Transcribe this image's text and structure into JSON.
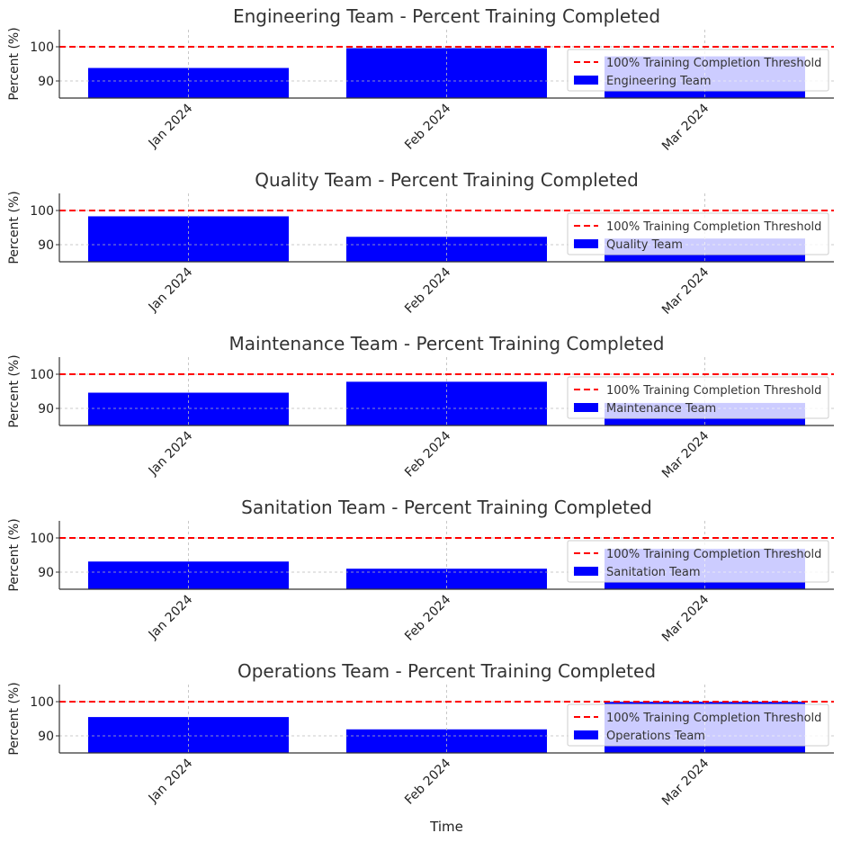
{
  "chart_data": [
    {
      "type": "bar",
      "title": "Engineering Team - Percent Training Completed",
      "ylabel": "Percent (%)",
      "xlabel": "",
      "categories": [
        "Jan 2024",
        "Feb 2024",
        "Mar 2024"
      ],
      "series": [
        {
          "name": "Engineering Team",
          "values": [
            93.8,
            99.6,
            97.2
          ]
        }
      ],
      "threshold": {
        "name": "100% Training Completion Threshold",
        "value": 100
      },
      "ylim": [
        85,
        105
      ],
      "yticks": [
        90,
        100
      ]
    },
    {
      "type": "bar",
      "title": "Quality Team - Percent Training Completed",
      "ylabel": "Percent (%)",
      "xlabel": "",
      "categories": [
        "Jan 2024",
        "Feb 2024",
        "Mar 2024"
      ],
      "series": [
        {
          "name": "Quality Team",
          "values": [
            98.3,
            92.3,
            91.8
          ]
        }
      ],
      "threshold": {
        "name": "100% Training Completion Threshold",
        "value": 100
      },
      "ylim": [
        85,
        105
      ],
      "yticks": [
        90,
        100
      ]
    },
    {
      "type": "bar",
      "title": "Maintenance Team - Percent Training Completed",
      "ylabel": "Percent (%)",
      "xlabel": "",
      "categories": [
        "Jan 2024",
        "Feb 2024",
        "Mar 2024"
      ],
      "series": [
        {
          "name": "Maintenance Team",
          "values": [
            94.6,
            97.8,
            91.6
          ]
        }
      ],
      "threshold": {
        "name": "100% Training Completion Threshold",
        "value": 100
      },
      "ylim": [
        85,
        105
      ],
      "yticks": [
        90,
        100
      ]
    },
    {
      "type": "bar",
      "title": "Sanitation Team - Percent Training Completed",
      "ylabel": "Percent (%)",
      "xlabel": "",
      "categories": [
        "Jan 2024",
        "Feb 2024",
        "Mar 2024"
      ],
      "series": [
        {
          "name": "Sanitation Team",
          "values": [
            93.1,
            91.0,
            96.8
          ]
        }
      ],
      "threshold": {
        "name": "100% Training Completion Threshold",
        "value": 100
      },
      "ylim": [
        85,
        105
      ],
      "yticks": [
        90,
        100
      ]
    },
    {
      "type": "bar",
      "title": "Operations Team - Percent Training Completed",
      "ylabel": "Percent (%)",
      "xlabel": "Time",
      "categories": [
        "Jan 2024",
        "Feb 2024",
        "Mar 2024"
      ],
      "series": [
        {
          "name": "Operations Team",
          "values": [
            95.5,
            91.9,
            100.0
          ]
        }
      ],
      "threshold": {
        "name": "100% Training Completion Threshold",
        "value": 100
      },
      "ylim": [
        85,
        105
      ],
      "yticks": [
        90,
        100
      ]
    }
  ],
  "style": {
    "bar_color": "#0000ff",
    "threshold_color": "#ff0000",
    "grid": true,
    "legend_position": "right",
    "text_color": "#333333"
  }
}
